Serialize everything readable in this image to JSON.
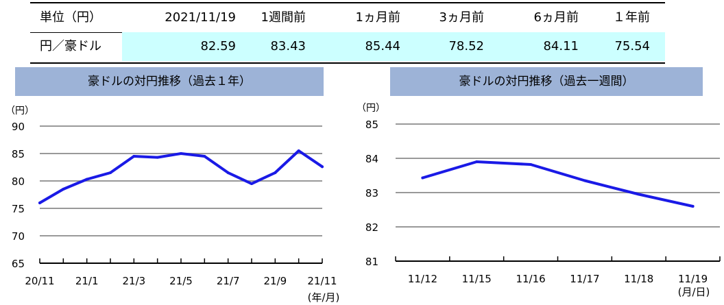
{
  "table": {
    "headers": [
      "単位（円）",
      "2021/11/19",
      "1週間前",
      "1ヵ月前",
      "3ヵ月前",
      "6ヵ月前",
      "１年前"
    ],
    "row_label": "円／豪ドル",
    "values": [
      "82.59",
      "83.43",
      "85.44",
      "78.52",
      "84.11",
      "75.54"
    ]
  },
  "chart_data": [
    {
      "type": "line",
      "title": "豪ドルの対円推移（過去１年）",
      "ylabel": "（円）",
      "xlabel": "(年/月)",
      "ylim": [
        65,
        90
      ],
      "yticks": [
        "90",
        "85",
        "80",
        "75",
        "70",
        "65"
      ],
      "xticks": [
        "20/11",
        "21/1",
        "21/3",
        "21/5",
        "21/7",
        "21/9",
        "21/11"
      ],
      "grid": true,
      "color": "#1a1ae6",
      "x": [
        "20/11",
        "20/12",
        "21/1",
        "21/2",
        "21/3",
        "21/4",
        "21/5",
        "21/6",
        "21/7",
        "21/8",
        "21/9",
        "21/10",
        "21/11"
      ],
      "values": [
        76.0,
        78.5,
        80.3,
        81.5,
        84.5,
        84.3,
        85.0,
        84.5,
        81.5,
        79.5,
        81.5,
        85.5,
        82.6
      ]
    },
    {
      "type": "line",
      "title": "豪ドルの対円推移（過去一週間）",
      "ylabel": "（円）",
      "xlabel": "(月/日)",
      "ylim": [
        81,
        85
      ],
      "yticks": [
        "85",
        "84",
        "83",
        "82",
        "81"
      ],
      "categories": [
        "11/12",
        "11/15",
        "11/16",
        "11/17",
        "11/18",
        "11/19"
      ],
      "grid": true,
      "color": "#1a1ae6",
      "values": [
        83.43,
        83.9,
        83.82,
        83.35,
        82.95,
        82.6
      ]
    }
  ]
}
